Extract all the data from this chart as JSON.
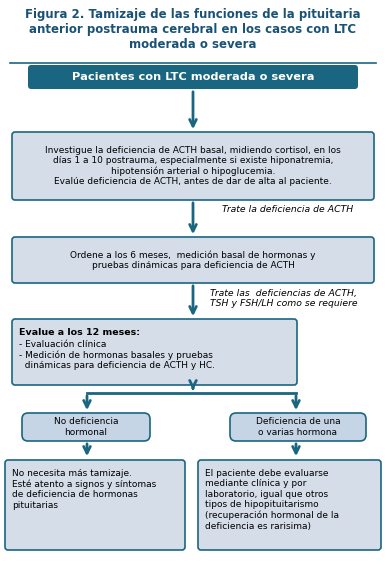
{
  "title": "Figura 2. Tamizaje de las funciones de la pituitaria\nanterior postrauma cerebral en los casos con LTC\nmoderada o severa",
  "title_color": "#1a5276",
  "title_fontsize": 8.5,
  "bg_color": "#ffffff",
  "box1_text": "Pacientes con LTC moderada o severa",
  "box1_bg": "#1a6680",
  "box1_text_color": "#ffffff",
  "box2_text": "Investigue la deficiencia de ACTH basal, midiendo cortisol, en los\ndías 1 a 10 postrauma, especialmente si existe hiponatremia,\nhipotensión arterial o hipoglucemia.\nEvalúe deficiencia de ACTH, antes de dar de alta al paciente.",
  "box2_bg": "#d5dde8",
  "box2_text_color": "#000000",
  "side_text1": "Trate la deficiencia de ACTH",
  "box3_text": "Ordene a los 6 meses,  medición basal de hormonas y\npruebas dinámicas para deficiencia de ACTH",
  "box3_bg": "#d5dde8",
  "box3_text_color": "#000000",
  "side_text2": "Trate las  deficiencias de ACTH,\nTSH y FSH/LH como se requiere",
  "box4_bg": "#d5dde8",
  "box4_text_color": "#000000",
  "box4_title": "Evalue a los 12 meses:",
  "box4_body": "- Evaluación clínica\n- Medición de hormonas basales y pruebas\n  dinámicas para deficiencia de ACTH y HC.",
  "box5a_text": "No deficiencia\nhormonal",
  "box5a_bg": "#c5d5e5",
  "box5a_text_color": "#000000",
  "box5b_text": "Deficiencia de una\no varias hormona",
  "box5b_bg": "#c5d5e5",
  "box5b_text_color": "#000000",
  "box6a_text": "No necesita más tamizaje.\nEsté atento a signos y síntomas\nde deficiencia de hormonas\npituitarias",
  "box6a_bg": "#d5dde8",
  "box6a_text_color": "#000000",
  "box6b_text": "El paciente debe evaluarse\nmediante clínica y por\nlaboratorio, igual que otros\ntipos de hipopituitarismo\n(recuperación hormonal de la\ndeficiencia es rarisima)",
  "box6b_text_color": "#000000",
  "box6b_bg": "#d5dde8",
  "arrow_color": "#1a6680",
  "border_color": "#1a6680",
  "text_color": "#000000",
  "side_text_color": "#000000"
}
